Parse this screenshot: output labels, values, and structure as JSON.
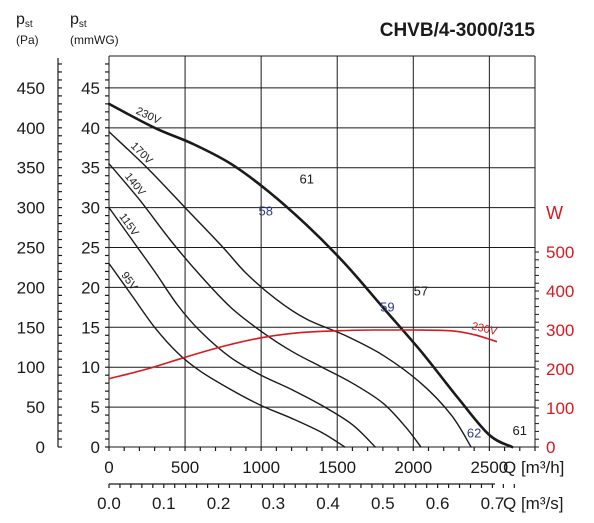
{
  "chart_data": {
    "type": "line",
    "title": "CHVB/4-3000/315",
    "left_axis_pa": {
      "label_main": "p",
      "label_sub": "st",
      "unit": "(Pa)",
      "ticks": [
        "0",
        "50",
        "100",
        "150",
        "200",
        "250",
        "300",
        "350",
        "400",
        "450"
      ],
      "ylim": [
        0,
        450
      ]
    },
    "left_axis_mmwg": {
      "label_main": "p",
      "label_sub": "st",
      "unit": "(mmWG)",
      "ticks": [
        "0",
        "5",
        "10",
        "15",
        "20",
        "25",
        "30",
        "35",
        "40",
        "45"
      ],
      "ylim": [
        0,
        45
      ]
    },
    "right_axis": {
      "label": "W",
      "ticks": [
        "0",
        "100",
        "200",
        "300",
        "400",
        "500"
      ],
      "ylim": [
        0,
        500
      ],
      "color": "#d71920"
    },
    "x_axis_m3h": {
      "label": "Q [m³/h]",
      "ticks": [
        "0",
        "500",
        "1000",
        "1500",
        "2000",
        "2500"
      ],
      "xlim": [
        0,
        2800
      ]
    },
    "x_axis_m3s": {
      "label": "Q [m³/s]",
      "ticks": [
        "0.0",
        "0.1",
        "0.2",
        "0.3",
        "0.4",
        "0.5",
        "0.6",
        "0.7"
      ]
    },
    "grid": true,
    "series": [
      {
        "name": "230V",
        "color": "#1a1a1a",
        "width": 2.6,
        "x": [
          0,
          300,
          550,
          800,
          1050,
          1300,
          1550,
          1800,
          2050,
          2300,
          2500,
          2650
        ],
        "y": [
          430,
          400,
          380,
          355,
          320,
          278,
          230,
          175,
          120,
          60,
          15,
          0
        ]
      },
      {
        "name": "170V",
        "color": "#1a1a1a",
        "width": 1.4,
        "x": [
          0,
          250,
          500,
          750,
          900,
          1100,
          1300,
          1550,
          1800,
          2050,
          2250,
          2380
        ],
        "y": [
          395,
          350,
          300,
          250,
          218,
          185,
          160,
          140,
          115,
          80,
          40,
          0
        ]
      },
      {
        "name": "140V",
        "color": "#1a1a1a",
        "width": 1.4,
        "x": [
          0,
          200,
          400,
          600,
          800,
          1000,
          1200,
          1400,
          1600,
          1800,
          1950,
          2050
        ],
        "y": [
          355,
          310,
          260,
          215,
          175,
          145,
          120,
          100,
          80,
          55,
          25,
          0
        ]
      },
      {
        "name": "115V",
        "color": "#1a1a1a",
        "width": 1.4,
        "x": [
          0,
          150,
          300,
          450,
          600,
          800,
          1000,
          1200,
          1400,
          1600,
          1750
        ],
        "y": [
          300,
          260,
          220,
          178,
          145,
          112,
          90,
          72,
          52,
          28,
          0
        ]
      },
      {
        "name": "95V",
        "color": "#1a1a1a",
        "width": 1.4,
        "x": [
          0,
          150,
          300,
          450,
          600,
          800,
          1000,
          1200,
          1400,
          1550
        ],
        "y": [
          230,
          190,
          150,
          118,
          95,
          72,
          52,
          36,
          18,
          0
        ]
      }
    ],
    "power_series": {
      "name": "230V",
      "color": "#d71920",
      "axis": "right",
      "x": [
        0,
        250,
        500,
        750,
        1000,
        1250,
        1500,
        1750,
        2000,
        2250,
        2400,
        2550
      ],
      "y": [
        175,
        200,
        230,
        258,
        280,
        293,
        298,
        300,
        300,
        298,
        288,
        270
      ]
    },
    "annotations": [
      {
        "text": "61",
        "x": 1300,
        "y": 330,
        "color": "#1a1a1a"
      },
      {
        "text": "58",
        "x": 1030,
        "y": 290,
        "color": "#2e3a87"
      },
      {
        "text": "57",
        "x": 2050,
        "y": 190,
        "color": "#1a1a1a"
      },
      {
        "text": "59",
        "x": 1830,
        "y": 170,
        "color": "#2e3a87"
      },
      {
        "text": "62",
        "x": 2400,
        "y": 12,
        "color": "#2e3a87"
      },
      {
        "text": "61",
        "x": 2700,
        "y": 15,
        "color": "#1a1a1a"
      }
    ]
  }
}
